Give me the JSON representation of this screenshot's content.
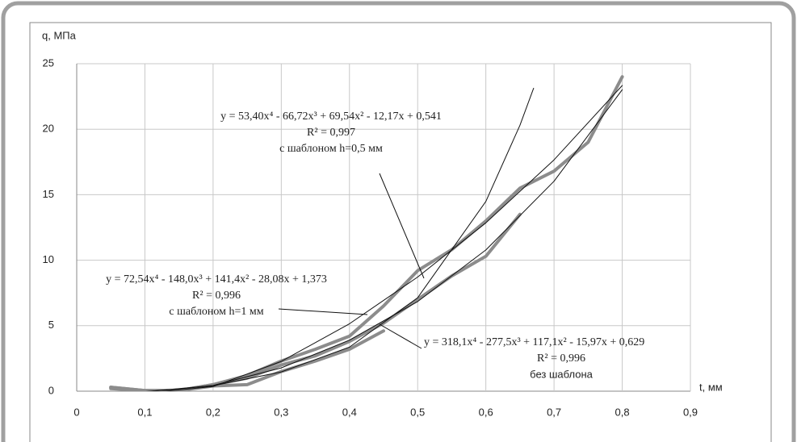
{
  "chart_data": {
    "type": "line",
    "y_label": "q, МПа",
    "x_label": "t, мм",
    "xlim": [
      0,
      0.9
    ],
    "ylim": [
      0,
      25
    ],
    "xticks": [
      0,
      {
        "value": 0.1,
        "label": "0,1"
      },
      {
        "value": 0.2,
        "label": "0,2"
      },
      {
        "value": 0.3,
        "label": "0,3"
      },
      {
        "value": 0.4,
        "label": "0,4"
      },
      {
        "value": 0.5,
        "label": "0,5"
      },
      {
        "value": 0.6,
        "label": "0,6"
      },
      {
        "value": 0.7,
        "label": "0,7"
      },
      {
        "value": 0.8,
        "label": "0,8"
      },
      {
        "value": 0.9,
        "label": "0,9"
      }
    ],
    "yticks": [
      0,
      5,
      10,
      15,
      20,
      25
    ],
    "grid": true,
    "series": [
      {
        "color": "#8c8c8c",
        "width": 4,
        "x": [
          0.05,
          0.1,
          0.15,
          0.2,
          0.25,
          0.3,
          0.35,
          0.4,
          0.45,
          0.5,
          0.55,
          0.6,
          0.65,
          0.7,
          0.75,
          0.8
        ],
        "values": [
          0.2,
          0.05,
          0.05,
          0.5,
          1.2,
          2.3,
          3.2,
          4.2,
          6.5,
          9.2,
          10.8,
          13.0,
          15.5,
          16.8,
          19.0,
          24.0
        ]
      },
      {
        "color": "#8c8c8c",
        "width": 4,
        "x": [
          0.05,
          0.1,
          0.15,
          0.2,
          0.25,
          0.3,
          0.35,
          0.4,
          0.45,
          0.5,
          0.55,
          0.6,
          0.65
        ],
        "values": [
          0.3,
          0.05,
          0.05,
          0.5,
          1.0,
          2.0,
          2.7,
          3.8,
          5.2,
          7.0,
          8.8,
          10.3,
          13.5
        ]
      },
      {
        "color": "#8c8c8c",
        "width": 4,
        "x": [
          0.05,
          0.1,
          0.15,
          0.2,
          0.25,
          0.3,
          0.35,
          0.4,
          0.45
        ],
        "values": [
          0.3,
          0.05,
          0.05,
          0.4,
          0.5,
          1.5,
          2.3,
          3.2,
          4.6
        ]
      },
      {
        "color": "#111111",
        "width": 1,
        "x": [
          0.1,
          0.2,
          0.3,
          0.4,
          0.5,
          0.6,
          0.7,
          0.8
        ],
        "values": [
          -0.04,
          0.44,
          1.78,
          3.9,
          6.84,
          10.78,
          16.03,
          23.02
        ]
      },
      {
        "color": "#111111",
        "width": 1,
        "x": [
          0.1,
          0.2,
          0.3,
          0.4,
          0.5,
          0.6,
          0.7,
          0.8
        ],
        "values": [
          -0.16,
          0.35,
          2.27,
          5.15,
          8.71,
          12.85,
          17.66,
          23.34
        ]
      },
      {
        "color": "#111111",
        "width": 1,
        "x": [
          0.1,
          0.2,
          0.3,
          0.4,
          0.5,
          0.6,
          0.65,
          0.67
        ],
        "values": [
          -0.05,
          0.41,
          1.47,
          3.36,
          7.13,
          14.49,
          20.3,
          23.13
        ]
      }
    ],
    "annotations": [
      {
        "equation": "y = 53,40x⁴ - 66,72x³ + 69,54x² - 12,17x + 0,541",
        "r2": "R² = 0,997",
        "caption": "с шаблоном h=0,5 мм"
      },
      {
        "equation": "y = 72,54x⁴ - 148,0x³ + 141,4x² - 28,08x + 1,373",
        "r2": "R² = 0,996",
        "caption": "с шаблоном h=1 мм"
      },
      {
        "equation": "y = 318,1x⁴ - 277,5x³ + 117,1x² - 15,97x + 0,629",
        "r2": "R² = 0,996",
        "caption": "без шаблона"
      }
    ]
  }
}
